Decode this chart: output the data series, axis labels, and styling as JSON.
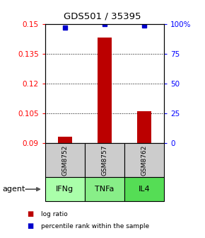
{
  "title": "GDS501 / 35395",
  "samples": [
    "GSM8752",
    "GSM8757",
    "GSM8762"
  ],
  "agents": [
    "IFNg",
    "TNFa",
    "IL4"
  ],
  "bar_positions": [
    0,
    1,
    2
  ],
  "log_ratio_values": [
    0.093,
    0.143,
    0.106
  ],
  "log_ratio_baseline": 0.09,
  "percentile_values": [
    0.148,
    0.15,
    0.149
  ],
  "ylim": [
    0.09,
    0.15
  ],
  "yticks_left": [
    0.09,
    0.105,
    0.12,
    0.135,
    0.15
  ],
  "yticks_right_labels": [
    "0",
    "25",
    "50",
    "75",
    "100%"
  ],
  "bar_color": "#bb0000",
  "percentile_color": "#0000cc",
  "agent_colors": [
    "#aaffaa",
    "#88ee88",
    "#55dd55"
  ],
  "sample_bg": "#cccccc",
  "legend_bar_label": "log ratio",
  "legend_pct_label": "percentile rank within the sample",
  "agent_label": "agent"
}
